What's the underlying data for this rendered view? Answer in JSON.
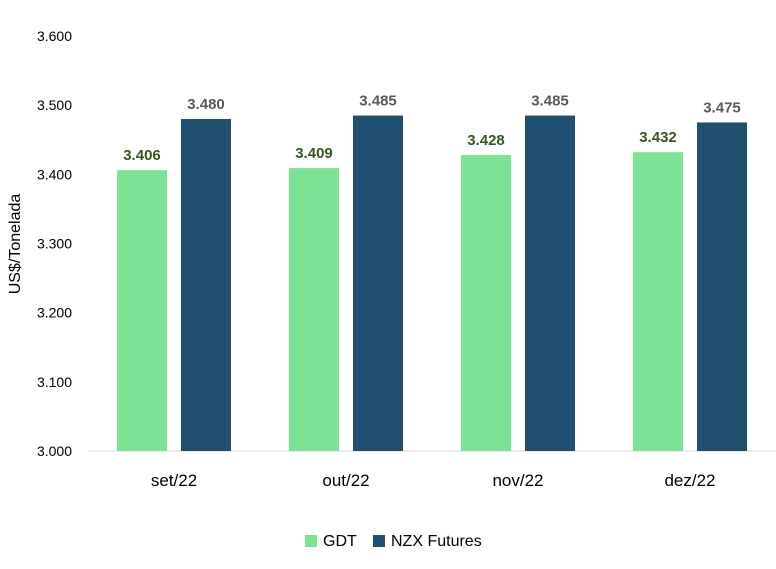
{
  "chart_data": {
    "type": "bar",
    "title": "",
    "xlabel": "",
    "ylabel": "US$/Tonelada",
    "ylim": [
      3000,
      3600
    ],
    "yticks": [
      3000,
      3100,
      3200,
      3300,
      3400,
      3500,
      3600
    ],
    "ytick_labels": [
      "3.000",
      "3.100",
      "3.200",
      "3.300",
      "3.400",
      "3.500",
      "3.600"
    ],
    "categories": [
      "set/22",
      "out/22",
      "nov/22",
      "dez/22"
    ],
    "series": [
      {
        "name": "GDT",
        "color": "#7de394",
        "label_color": "#375623",
        "values": [
          3406,
          3409,
          3428,
          3432
        ],
        "labels": [
          "3.406",
          "3.409",
          "3.428",
          "3.432"
        ]
      },
      {
        "name": "NZX Futures",
        "color": "#1f4e6e",
        "label_color": "#595959",
        "values": [
          3480,
          3485,
          3485,
          3475
        ],
        "labels": [
          "3.480",
          "3.485",
          "3.485",
          "3.475"
        ]
      }
    ],
    "grid": false,
    "legend_position": "bottom-center"
  }
}
